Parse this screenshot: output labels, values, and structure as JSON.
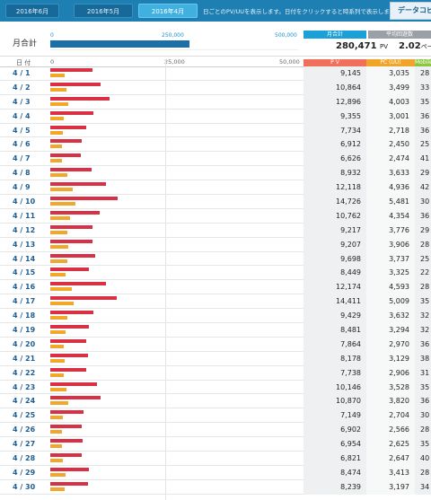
{
  "tabs": [
    {
      "label": "2016年6月",
      "active": false
    },
    {
      "label": "2016年5月",
      "active": false
    },
    {
      "label": "2016年4月",
      "active": true
    }
  ],
  "notice": "日ごとのPV/UUを表示します。日付をクリックすると時系列で表示します。",
  "export_label": "データコピー",
  "summary": {
    "label": "月合計",
    "scale": [
      "0",
      "250,000",
      "500,000"
    ],
    "total_fraction": 0.5609,
    "box1_label": "月合計",
    "box2_label": "平均回遊数",
    "total_value": "280,471",
    "total_unit": "PV",
    "avg_value": "2.02",
    "avg_unit": "ページ"
  },
  "table": {
    "date_header": "日 付",
    "ticks": [
      "0",
      "25,000",
      "50,000"
    ],
    "col_pv": "P V",
    "col_pc": "PC (UU)",
    "col_mobile": "Mobile (UU)",
    "colors": {
      "pv": "#d93044",
      "pc": "#f2a72a",
      "pv_head": "#f0705c",
      "pc_head": "#f0a52a",
      "mo_head": "#8cc63f",
      "box1": "#1ba0d8",
      "box2": "#9aa0a6"
    },
    "rows": [
      {
        "date": "4 / 1",
        "pv": "9,145",
        "pc": "3,035",
        "mo": "28",
        "pv_n": 9145,
        "pc_n": 3035
      },
      {
        "date": "4 / 2",
        "pv": "10,864",
        "pc": "3,499",
        "mo": "33",
        "pv_n": 10864,
        "pc_n": 3499
      },
      {
        "date": "4 / 3",
        "pv": "12,896",
        "pc": "4,003",
        "mo": "35",
        "pv_n": 12896,
        "pc_n": 4003
      },
      {
        "date": "4 / 4",
        "pv": "9,355",
        "pc": "3,001",
        "mo": "36",
        "pv_n": 9355,
        "pc_n": 3001
      },
      {
        "date": "4 / 5",
        "pv": "7,734",
        "pc": "2,718",
        "mo": "36",
        "pv_n": 7734,
        "pc_n": 2718
      },
      {
        "date": "4 / 6",
        "pv": "6,912",
        "pc": "2,450",
        "mo": "25",
        "pv_n": 6912,
        "pc_n": 2450
      },
      {
        "date": "4 / 7",
        "pv": "6,626",
        "pc": "2,474",
        "mo": "41",
        "pv_n": 6626,
        "pc_n": 2474
      },
      {
        "date": "4 / 8",
        "pv": "8,932",
        "pc": "3,633",
        "mo": "29",
        "pv_n": 8932,
        "pc_n": 3633
      },
      {
        "date": "4 / 9",
        "pv": "12,118",
        "pc": "4,936",
        "mo": "42",
        "pv_n": 12118,
        "pc_n": 4936
      },
      {
        "date": "4 / 10",
        "pv": "14,726",
        "pc": "5,481",
        "mo": "30",
        "pv_n": 14726,
        "pc_n": 5481
      },
      {
        "date": "4 / 11",
        "pv": "10,762",
        "pc": "4,354",
        "mo": "36",
        "pv_n": 10762,
        "pc_n": 4354
      },
      {
        "date": "4 / 12",
        "pv": "9,217",
        "pc": "3,776",
        "mo": "29",
        "pv_n": 9217,
        "pc_n": 3776
      },
      {
        "date": "4 / 13",
        "pv": "9,207",
        "pc": "3,906",
        "mo": "28",
        "pv_n": 9207,
        "pc_n": 3906
      },
      {
        "date": "4 / 14",
        "pv": "9,698",
        "pc": "3,737",
        "mo": "25",
        "pv_n": 9698,
        "pc_n": 3737
      },
      {
        "date": "4 / 15",
        "pv": "8,449",
        "pc": "3,325",
        "mo": "22",
        "pv_n": 8449,
        "pc_n": 3325
      },
      {
        "date": "4 / 16",
        "pv": "12,174",
        "pc": "4,593",
        "mo": "28",
        "pv_n": 12174,
        "pc_n": 4593
      },
      {
        "date": "4 / 17",
        "pv": "14,411",
        "pc": "5,009",
        "mo": "35",
        "pv_n": 14411,
        "pc_n": 5009
      },
      {
        "date": "4 / 18",
        "pv": "9,429",
        "pc": "3,632",
        "mo": "32",
        "pv_n": 9429,
        "pc_n": 3632
      },
      {
        "date": "4 / 19",
        "pv": "8,481",
        "pc": "3,294",
        "mo": "32",
        "pv_n": 8481,
        "pc_n": 3294
      },
      {
        "date": "4 / 20",
        "pv": "7,864",
        "pc": "2,970",
        "mo": "36",
        "pv_n": 7864,
        "pc_n": 2970
      },
      {
        "date": "4 / 21",
        "pv": "8,178",
        "pc": "3,129",
        "mo": "38",
        "pv_n": 8178,
        "pc_n": 3129
      },
      {
        "date": "4 / 22",
        "pv": "7,738",
        "pc": "2,906",
        "mo": "31",
        "pv_n": 7738,
        "pc_n": 2906
      },
      {
        "date": "4 / 23",
        "pv": "10,146",
        "pc": "3,528",
        "mo": "35",
        "pv_n": 10146,
        "pc_n": 3528
      },
      {
        "date": "4 / 24",
        "pv": "10,870",
        "pc": "3,820",
        "mo": "36",
        "pv_n": 10870,
        "pc_n": 3820
      },
      {
        "date": "4 / 25",
        "pv": "7,149",
        "pc": "2,704",
        "mo": "30",
        "pv_n": 7149,
        "pc_n": 2704
      },
      {
        "date": "4 / 26",
        "pv": "6,902",
        "pc": "2,566",
        "mo": "28",
        "pv_n": 6902,
        "pc_n": 2566
      },
      {
        "date": "4 / 27",
        "pv": "6,954",
        "pc": "2,625",
        "mo": "35",
        "pv_n": 6954,
        "pc_n": 2625
      },
      {
        "date": "4 / 28",
        "pv": "6,821",
        "pc": "2,647",
        "mo": "40",
        "pv_n": 6821,
        "pc_n": 2647
      },
      {
        "date": "4 / 29",
        "pv": "8,474",
        "pc": "3,413",
        "mo": "28",
        "pv_n": 8474,
        "pc_n": 3413
      },
      {
        "date": "4 / 30",
        "pv": "8,239",
        "pc": "3,197",
        "mo": "34",
        "pv_n": 8239,
        "pc_n": 3197
      }
    ]
  }
}
